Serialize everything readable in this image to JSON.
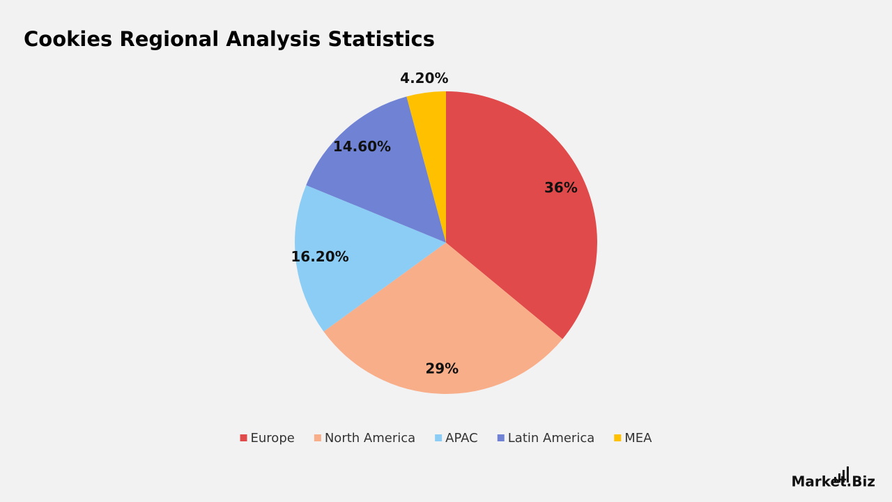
{
  "chart_data": {
    "type": "pie",
    "title": "Cookies Regional Analysis Statistics",
    "categories": [
      "Europe",
      "North America",
      "APAC",
      "Latin America",
      "MEA"
    ],
    "values": [
      36,
      29,
      16.2,
      14.6,
      4.2
    ],
    "value_labels": [
      "36%",
      "29%",
      "16.20%",
      "14.60%",
      "4.20%"
    ],
    "colors": [
      "#e04a4a",
      "#f9ae8a",
      "#8ccdf5",
      "#6f82d4",
      "#ffc000"
    ],
    "legend": "bottom"
  },
  "logo": "Market.Biz"
}
